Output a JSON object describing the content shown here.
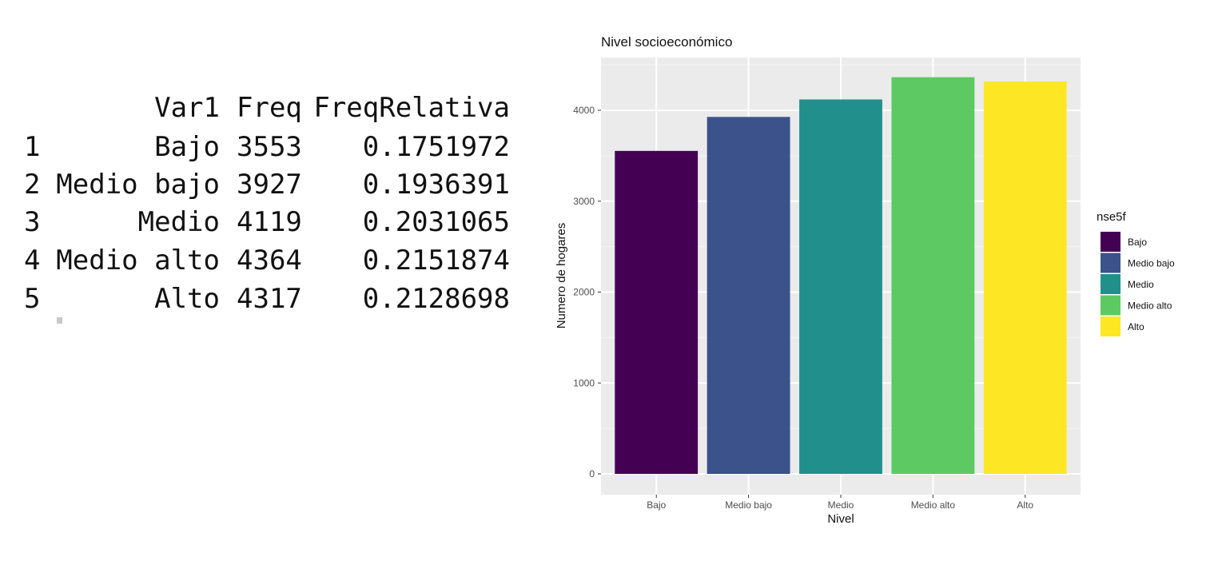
{
  "console": {
    "header": {
      "col_var": "Var1",
      "col_freq": "Freq",
      "col_rel": "FreqRelativa"
    },
    "rows": [
      {
        "idx": "1",
        "var": "Bajo",
        "freq": "3553",
        "rel": "0.1751972"
      },
      {
        "idx": "2",
        "var": "Medio bajo",
        "freq": "3927",
        "rel": "0.1936391"
      },
      {
        "idx": "3",
        "var": "Medio",
        "freq": "4119",
        "rel": "0.2031065"
      },
      {
        "idx": "4",
        "var": "Medio alto",
        "freq": "4364",
        "rel": "0.2151874"
      },
      {
        "idx": "5",
        "var": "Alto",
        "freq": "4317",
        "rel": "0.2128698"
      }
    ]
  },
  "chart_data": {
    "type": "bar",
    "title": "Nivel socioeconómico",
    "xlabel": "Nivel",
    "ylabel": "Numero de hogares",
    "categories": [
      "Bajo",
      "Medio bajo",
      "Medio",
      "Medio alto",
      "Alto"
    ],
    "values": [
      3553,
      3927,
      4119,
      4364,
      4317
    ],
    "colors": [
      "#440154",
      "#3b528b",
      "#21908c",
      "#5dc963",
      "#fde725"
    ],
    "ylim": [
      0,
      4560
    ],
    "yticks": [
      0,
      1000,
      2000,
      3000,
      4000
    ],
    "grid": true,
    "legend": {
      "title": "nse5f",
      "placement": "right",
      "entries": [
        "Bajo",
        "Medio bajo",
        "Medio",
        "Medio alto",
        "Alto"
      ]
    }
  }
}
